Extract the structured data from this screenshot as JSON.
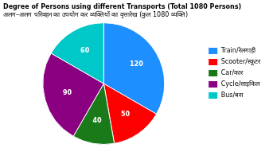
{
  "chart_data": {
    "type": "pie",
    "title": "Degree of Persons using different Transports (Total 1080 Persons)",
    "subtitle": "अलग–अलग परिवहन का उपयोग कर व्यक्तियों का वृत्तारेख (कुल 1080 व्यक्ति)",
    "categories": [
      "Train/रेलगाड़ी",
      "Scooter/स्कूटर",
      "Car/कार",
      "Cycle/साइकिल",
      "Bus/बस"
    ],
    "values": [
      120,
      50,
      40,
      90,
      60
    ],
    "colors": [
      "#1e8fff",
      "#ff0000",
      "#1a7a1a",
      "#8b0080",
      "#00c8c8"
    ],
    "data_labels": true,
    "legend": "right"
  }
}
